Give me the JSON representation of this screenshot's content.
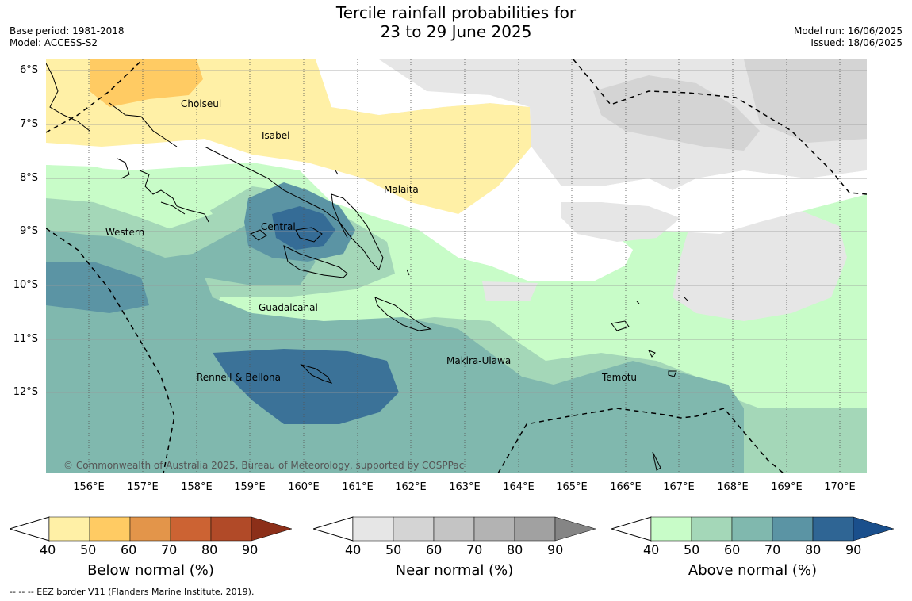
{
  "title_line1": "Tercile rainfall probabilities for",
  "title_line2": "23 to 29 June 2025",
  "base_period": "Base period: 1981-2018",
  "model": "Model: ACCESS-S2",
  "model_run": "Model run: 16/06/2025",
  "issued": "Issued: 18/06/2025",
  "lat_labels": [
    "6°S",
    "7°S",
    "8°S",
    "9°S",
    "10°S",
    "11°S",
    "12°S"
  ],
  "lon_labels": [
    "156°E",
    "157°E",
    "158°E",
    "159°E",
    "160°E",
    "161°E",
    "162°E",
    "163°E",
    "164°E",
    "165°E",
    "166°E",
    "167°E",
    "168°E",
    "169°E",
    "170°E"
  ],
  "regions": [
    "Choiseul",
    "Isabel",
    "Malaita",
    "Central",
    "Western",
    "Guadalcanal",
    "Makira-Ulawa",
    "Rennell & Bellona",
    "Temotu"
  ],
  "copyright": "© Commonwealth of Australia 2025, Bureau of Meteorology, supported by COSPPac",
  "legends": [
    {
      "title": "Below normal (%)",
      "ticks": [
        "40",
        "50",
        "60",
        "70",
        "80",
        "90"
      ],
      "colors": [
        "#fff0a6",
        "#ffcb63",
        "#e3954a",
        "#cc6333",
        "#b14a28",
        "#8c2f19"
      ]
    },
    {
      "title": "Near normal (%)",
      "ticks": [
        "40",
        "50",
        "60",
        "70",
        "80",
        "90"
      ],
      "colors": [
        "#e6e6e6",
        "#d4d4d4",
        "#c4c4c4",
        "#b3b3b3",
        "#a1a1a1",
        "#858585"
      ]
    },
    {
      "title": "Above normal (%)",
      "ticks": [
        "40",
        "50",
        "60",
        "70",
        "80",
        "90"
      ],
      "colors": [
        "#c8fcc8",
        "#a4d7b8",
        "#80b8ae",
        "#5b94a4",
        "#2f6594",
        "#1a4f8c"
      ]
    }
  ],
  "footnote": "--  --  -- EEZ border V11 (Flanders Marine Institute, 2019)."
}
